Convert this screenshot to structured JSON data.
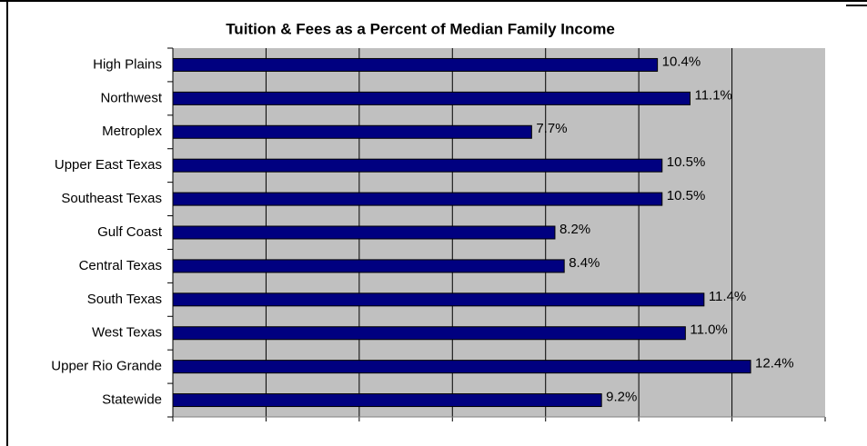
{
  "chart_data": {
    "type": "bar",
    "orientation": "horizontal",
    "title": "Tuition & Fees as a Percent of Median Family Income",
    "categories": [
      "High Plains",
      "Northwest",
      "Metroplex",
      "Upper East Texas",
      "Southeast Texas",
      "Gulf Coast",
      "Central Texas",
      "South Texas",
      "West Texas",
      "Upper Rio Grande",
      "Statewide"
    ],
    "values": [
      10.4,
      11.1,
      7.7,
      10.5,
      10.5,
      8.2,
      8.4,
      11.4,
      11.0,
      12.4,
      9.2
    ],
    "value_labels": [
      "10.4%",
      "11.1%",
      "7.7%",
      "10.5%",
      "10.5%",
      "8.2%",
      "8.4%",
      "11.4%",
      "11.0%",
      "12.4%",
      "9.2%"
    ],
    "color": "#000080",
    "xlim": [
      0,
      14
    ],
    "xticks": [
      0,
      2,
      4,
      6,
      8,
      10,
      12,
      14
    ],
    "grid": true
  }
}
